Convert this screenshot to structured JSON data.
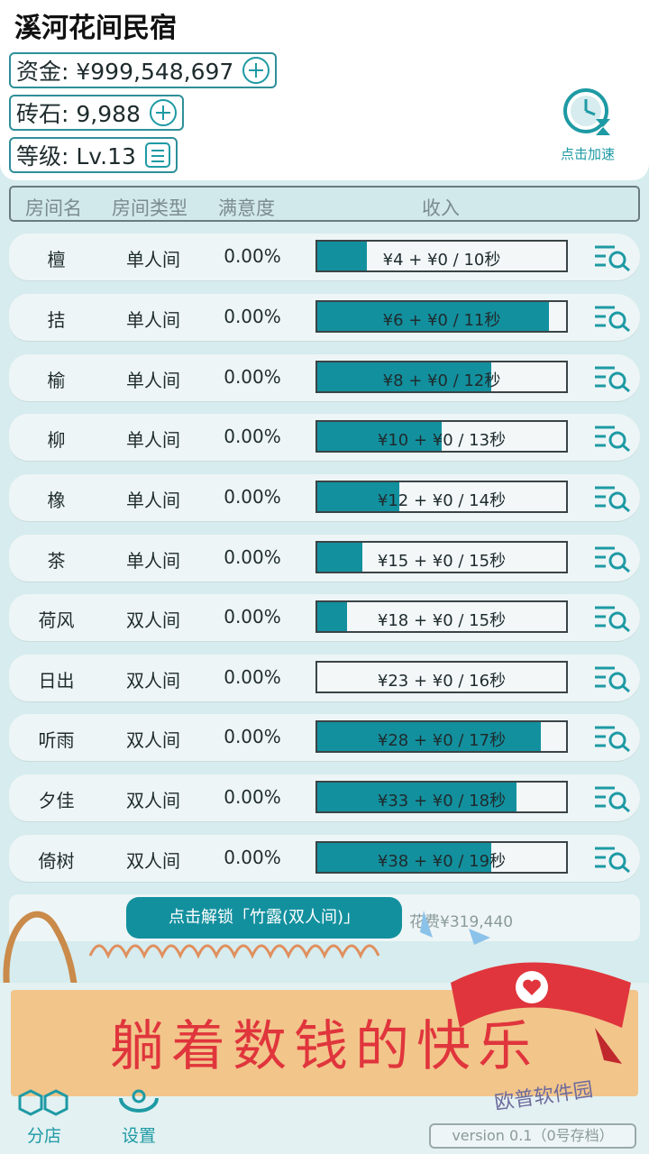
{
  "title": "溪河花间民宿",
  "stats": {
    "money_label": "资金: ¥999,548,697",
    "gems_label": "砖石: 9,988",
    "level_label": "等级: Lv.13"
  },
  "speedup": {
    "label": "点击加速"
  },
  "columns": {
    "name": "房间名",
    "type": "房间类型",
    "satisfaction": "满意度",
    "income": "收入"
  },
  "rooms": [
    {
      "name": "檀",
      "type": "单人间",
      "satisfaction": "0.00%",
      "income": "¥4 + ¥0 / 10秒",
      "progress": 0.2
    },
    {
      "name": "拮",
      "type": "单人间",
      "satisfaction": "0.00%",
      "income": "¥6 + ¥0 / 11秒",
      "progress": 0.93
    },
    {
      "name": "榆",
      "type": "单人间",
      "satisfaction": "0.00%",
      "income": "¥8 + ¥0 / 12秒",
      "progress": 0.7
    },
    {
      "name": "柳",
      "type": "单人间",
      "satisfaction": "0.00%",
      "income": "¥10 + ¥0 / 13秒",
      "progress": 0.5
    },
    {
      "name": "橡",
      "type": "单人间",
      "satisfaction": "0.00%",
      "income": "¥12 + ¥0 / 14秒",
      "progress": 0.33
    },
    {
      "name": "茶",
      "type": "单人间",
      "satisfaction": "0.00%",
      "income": "¥15 + ¥0 / 15秒",
      "progress": 0.18
    },
    {
      "name": "荷风",
      "type": "双人间",
      "satisfaction": "0.00%",
      "income": "¥18 + ¥0 / 15秒",
      "progress": 0.12
    },
    {
      "name": "日出",
      "type": "双人间",
      "satisfaction": "0.00%",
      "income": "¥23 + ¥0 / 16秒",
      "progress": 0.0
    },
    {
      "name": "听雨",
      "type": "双人间",
      "satisfaction": "0.00%",
      "income": "¥28 + ¥0 / 17秒",
      "progress": 0.9
    },
    {
      "name": "夕佳",
      "type": "双人间",
      "satisfaction": "0.00%",
      "income": "¥33 + ¥0 / 18秒",
      "progress": 0.8
    },
    {
      "name": "倚树",
      "type": "双人间",
      "satisfaction": "0.00%",
      "income": "¥38 + ¥0 / 19秒",
      "progress": 0.7
    }
  ],
  "unlock": {
    "label": "点击解锁「竹露(双人间)」",
    "cost": "花费¥319,440"
  },
  "banner": {
    "text": "躺着数钱的快乐"
  },
  "nav": {
    "branch": "分店",
    "settings": "设置"
  },
  "version": "version 0.1（0号存档）",
  "watermark": "欧普软件园",
  "colors": {
    "accent": "#13909e",
    "banner": "#f2c58b",
    "banner_text": "#e0353c"
  }
}
